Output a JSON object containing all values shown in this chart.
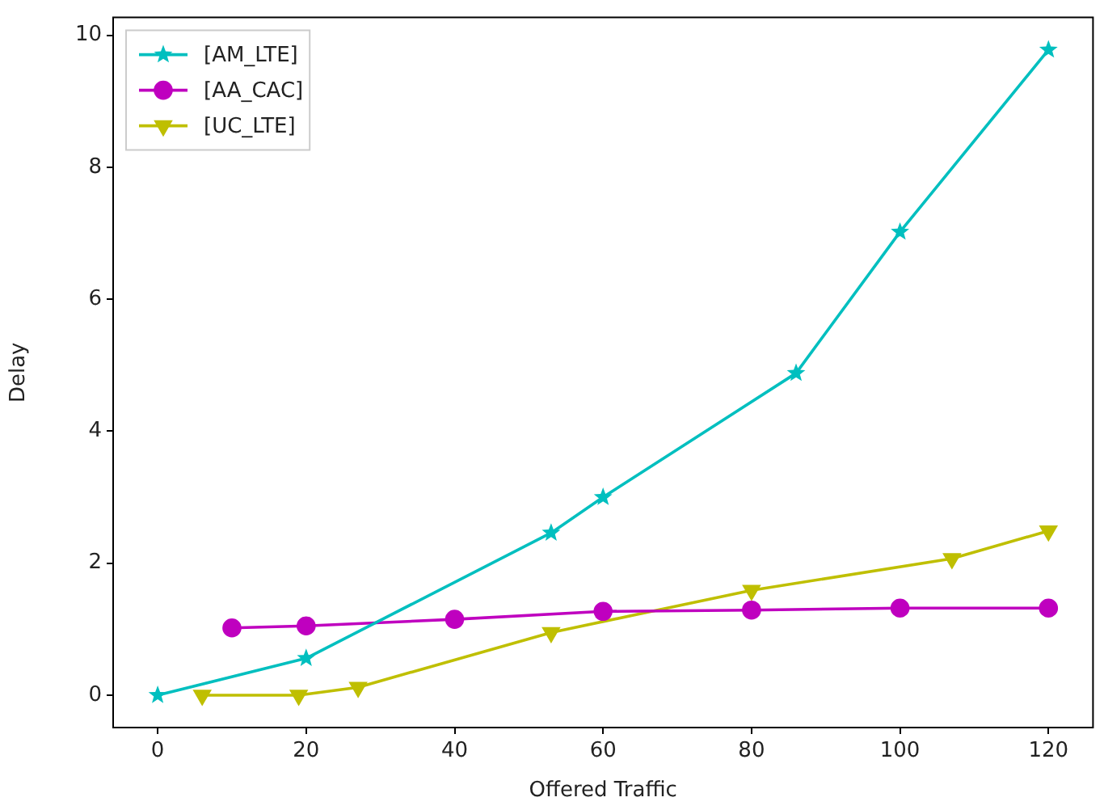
{
  "chart_data": {
    "type": "line",
    "xlabel": "Offered Traffic",
    "ylabel": "Delay",
    "xlim": [
      -6,
      126
    ],
    "xticks": [
      0,
      20,
      40,
      60,
      80,
      100,
      120
    ],
    "ylim": [
      -0.49,
      10.27
    ],
    "yticks": [
      0,
      2,
      4,
      6,
      8,
      10
    ],
    "legend": "top left",
    "grid": false,
    "line_style": "solid",
    "series": [
      {
        "name": "[AM_LTE]",
        "color": "#00bfbf",
        "marker": "star",
        "x": [
          0,
          20,
          53,
          60,
          86,
          100,
          120
        ],
        "values": [
          0,
          0.56,
          2.46,
          3.0,
          4.88,
          7.02,
          9.78
        ]
      },
      {
        "name": "[AA_CAC]",
        "color": "#bf00bf",
        "marker": "circle",
        "x": [
          10,
          20,
          40,
          60,
          80,
          100,
          120
        ],
        "values": [
          1.02,
          1.05,
          1.15,
          1.27,
          1.29,
          1.32,
          1.32
        ]
      },
      {
        "name": "[UC_LTE]",
        "color": "#bfbf00",
        "marker": "triangle",
        "x": [
          6,
          19,
          27,
          53,
          80,
          107,
          120
        ],
        "values": [
          0,
          0,
          0.12,
          0.95,
          1.59,
          2.07,
          2.49
        ]
      }
    ]
  }
}
